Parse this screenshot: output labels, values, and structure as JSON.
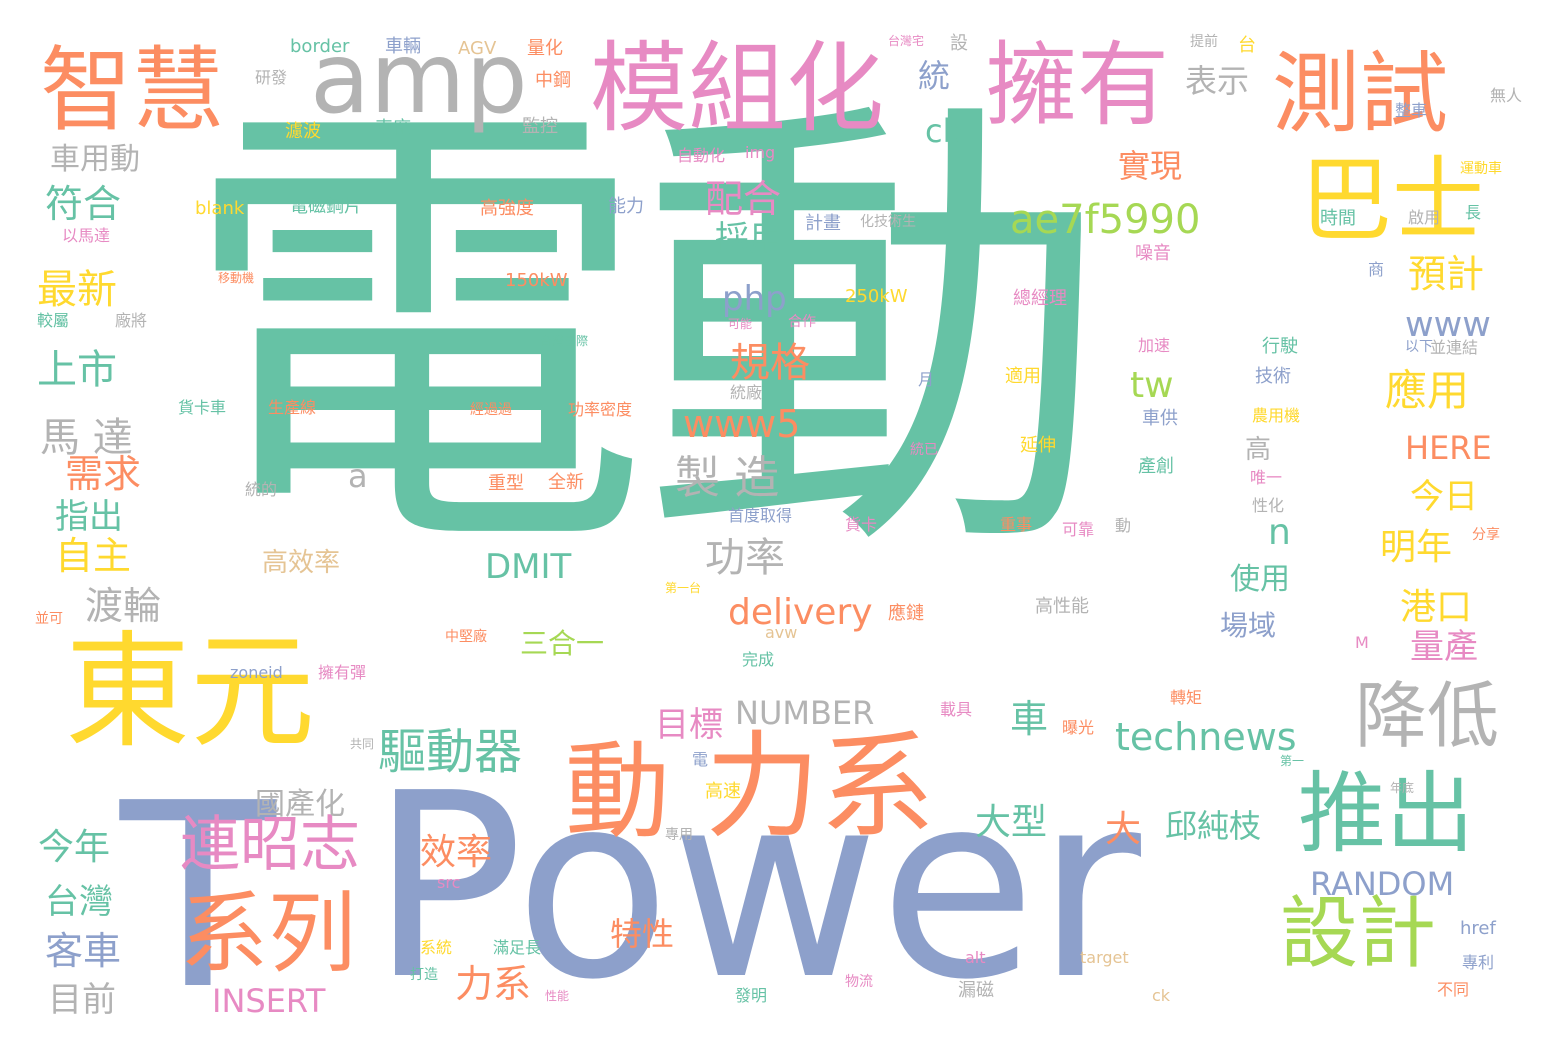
{
  "palette": {
    "teal": "#66c2a5",
    "orange": "#fc8d62",
    "blue": "#8da0cb",
    "pink": "#e78ac3",
    "green": "#a6d854",
    "yellow": "#ffd92f",
    "tan": "#e5c494",
    "gray": "#b3b3b3"
  },
  "words": [
    {
      "text": "電動",
      "size": 470,
      "color": "teal"
    },
    {
      "text": "Power",
      "size": 250,
      "color": "blue"
    },
    {
      "text": "T",
      "size": 250,
      "color": "blue"
    },
    {
      "text": "東元",
      "size": 120,
      "color": "yellow"
    },
    {
      "text": "力系",
      "size": 110,
      "color": "orange"
    },
    {
      "text": "動",
      "size": 100,
      "color": "orange"
    },
    {
      "text": "模組化",
      "size": 95,
      "color": "pink"
    },
    {
      "text": "擁有",
      "size": 90,
      "color": "pink"
    },
    {
      "text": "智慧",
      "size": 90,
      "color": "orange"
    },
    {
      "text": "amp",
      "size": 95,
      "color": "gray"
    },
    {
      "text": "測試",
      "size": 85,
      "color": "orange"
    },
    {
      "text": "巴士",
      "size": 85,
      "color": "yellow"
    },
    {
      "text": "推出",
      "size": 85,
      "color": "teal"
    },
    {
      "text": "系列",
      "size": 85,
      "color": "orange"
    },
    {
      "text": "設計",
      "size": 75,
      "color": "green"
    },
    {
      "text": "降低",
      "size": 70,
      "color": "gray"
    },
    {
      "text": "連昭志",
      "size": 60,
      "color": "pink"
    },
    {
      "text": "驅動器",
      "size": 48,
      "color": "teal"
    },
    {
      "text": "ae7f5990",
      "size": 40,
      "color": "green"
    },
    {
      "text": "technews",
      "size": 38,
      "color": "teal"
    },
    {
      "text": "製 造",
      "size": 45,
      "color": "gray"
    },
    {
      "text": "馬 達",
      "size": 40,
      "color": "gray"
    },
    {
      "text": "規格",
      "size": 40,
      "color": "orange"
    },
    {
      "text": "應用",
      "size": 40,
      "color": "yellow"
    },
    {
      "text": "www5",
      "size": 38,
      "color": "orange"
    },
    {
      "text": "www",
      "size": 35,
      "color": "blue"
    },
    {
      "text": "功率",
      "size": 40,
      "color": "gray"
    },
    {
      "text": "delivery",
      "size": 36,
      "color": "orange"
    },
    {
      "text": "RANDOM",
      "size": 32,
      "color": "blue"
    },
    {
      "text": "INSERT",
      "size": 32,
      "color": "pink"
    },
    {
      "text": "NUMBER",
      "size": 32,
      "color": "gray"
    },
    {
      "text": "DMIT",
      "size": 34,
      "color": "teal"
    },
    {
      "text": "HERE",
      "size": 32,
      "color": "orange"
    },
    {
      "text": "php",
      "size": 34,
      "color": "blue"
    },
    {
      "text": "tw",
      "size": 36,
      "color": "green"
    },
    {
      "text": "cb",
      "size": 32,
      "color": "teal"
    },
    {
      "text": "a",
      "size": 32,
      "color": "gray"
    },
    {
      "text": "n",
      "size": 36,
      "color": "teal"
    },
    {
      "text": "實現",
      "size": 32,
      "color": "orange"
    },
    {
      "text": "表示",
      "size": 32,
      "color": "gray"
    },
    {
      "text": "配合",
      "size": 38,
      "color": "pink"
    },
    {
      "text": "採用",
      "size": 34,
      "color": "teal"
    },
    {
      "text": "預計",
      "size": 38,
      "color": "yellow"
    },
    {
      "text": "統",
      "size": 32,
      "color": "blue"
    },
    {
      "text": "車用動",
      "size": 30,
      "color": "gray"
    },
    {
      "text": "符合",
      "size": 38,
      "color": "teal"
    },
    {
      "text": "最新",
      "size": 40,
      "color": "yellow"
    },
    {
      "text": "上市",
      "size": 40,
      "color": "teal"
    },
    {
      "text": "需求",
      "size": 38,
      "color": "orange"
    },
    {
      "text": "指出",
      "size": 34,
      "color": "teal"
    },
    {
      "text": "自主",
      "size": 38,
      "color": "yellow"
    },
    {
      "text": "渡輪",
      "size": 38,
      "color": "gray"
    },
    {
      "text": "今年",
      "size": 36,
      "color": "teal"
    },
    {
      "text": "台灣",
      "size": 34,
      "color": "teal"
    },
    {
      "text": "客車",
      "size": 38,
      "color": "blue"
    },
    {
      "text": "目前",
      "size": 34,
      "color": "gray"
    },
    {
      "text": "國產化",
      "size": 30,
      "color": "gray"
    },
    {
      "text": "大型",
      "size": 36,
      "color": "teal"
    },
    {
      "text": "大",
      "size": 36,
      "color": "orange"
    },
    {
      "text": "邱純枝",
      "size": 32,
      "color": "teal"
    },
    {
      "text": "效率",
      "size": 36,
      "color": "orange"
    },
    {
      "text": "力系",
      "size": 38,
      "color": "orange"
    },
    {
      "text": "特性",
      "size": 32,
      "color": "orange"
    },
    {
      "text": "目標",
      "size": 34,
      "color": "pink"
    },
    {
      "text": "車",
      "size": 38,
      "color": "teal"
    },
    {
      "text": "今日",
      "size": 34,
      "color": "yellow"
    },
    {
      "text": "明年",
      "size": 36,
      "color": "yellow"
    },
    {
      "text": "港口",
      "size": 36,
      "color": "yellow"
    },
    {
      "text": "量產",
      "size": 34,
      "color": "pink"
    },
    {
      "text": "使用",
      "size": 30,
      "color": "teal"
    },
    {
      "text": "場域",
      "size": 28,
      "color": "blue"
    },
    {
      "text": "三合一",
      "size": 28,
      "color": "green"
    },
    {
      "text": "高效率",
      "size": 26,
      "color": "tan"
    },
    {
      "text": "高",
      "size": 26,
      "color": "gray"
    },
    {
      "text": "border",
      "size": 18,
      "color": "teal"
    },
    {
      "text": "車輛",
      "size": 18,
      "color": "blue"
    },
    {
      "text": "AGV",
      "size": 18,
      "color": "tan"
    },
    {
      "text": "量化",
      "size": 18,
      "color": "orange"
    },
    {
      "text": "研發",
      "size": 16,
      "color": "gray"
    },
    {
      "text": "中鋼",
      "size": 18,
      "color": "orange"
    },
    {
      "text": "濾波",
      "size": 18,
      "color": "yellow"
    },
    {
      "text": "車廠",
      "size": 18,
      "color": "teal"
    },
    {
      "text": "監控",
      "size": 18,
      "color": "gray"
    },
    {
      "text": "自動化",
      "size": 16,
      "color": "pink"
    },
    {
      "text": "img",
      "size": 16,
      "color": "pink"
    },
    {
      "text": "blank",
      "size": 18,
      "color": "yellow"
    },
    {
      "text": "電磁鋼片",
      "size": 18,
      "color": "teal"
    },
    {
      "text": "高強度",
      "size": 18,
      "color": "orange"
    },
    {
      "text": "能力",
      "size": 18,
      "color": "blue"
    },
    {
      "text": "計畫",
      "size": 18,
      "color": "blue"
    },
    {
      "text": "以馬達",
      "size": 16,
      "color": "pink"
    },
    {
      "text": "150kW",
      "size": 18,
      "color": "orange"
    },
    {
      "text": "250kW",
      "size": 18,
      "color": "yellow"
    },
    {
      "text": "總經理",
      "size": 18,
      "color": "pink"
    },
    {
      "text": "移動機",
      "size": 12,
      "color": "orange"
    },
    {
      "text": "較屬",
      "size": 16,
      "color": "teal"
    },
    {
      "text": "廠將",
      "size": 16,
      "color": "gray"
    },
    {
      "text": "台灣國際",
      "size": 12,
      "color": "teal"
    },
    {
      "text": "可能",
      "size": 12,
      "color": "pink"
    },
    {
      "text": "合作",
      "size": 14,
      "color": "pink"
    },
    {
      "text": "加速",
      "size": 16,
      "color": "pink"
    },
    {
      "text": "行駛",
      "size": 18,
      "color": "teal"
    },
    {
      "text": "技術",
      "size": 18,
      "color": "blue"
    },
    {
      "text": "月",
      "size": 16,
      "color": "blue"
    },
    {
      "text": "適用",
      "size": 18,
      "color": "yellow"
    },
    {
      "text": "統廠",
      "size": 16,
      "color": "gray"
    },
    {
      "text": "以下",
      "size": 14,
      "color": "blue"
    },
    {
      "text": "並連結",
      "size": 16,
      "color": "gray"
    },
    {
      "text": "貨卡車",
      "size": 16,
      "color": "teal"
    },
    {
      "text": "生產線",
      "size": 16,
      "color": "orange"
    },
    {
      "text": "經過過",
      "size": 14,
      "color": "orange"
    },
    {
      "text": "功率密度",
      "size": 16,
      "color": "orange"
    },
    {
      "text": "車供",
      "size": 18,
      "color": "blue"
    },
    {
      "text": "農用機",
      "size": 16,
      "color": "yellow"
    },
    {
      "text": "延伸",
      "size": 18,
      "color": "yellow"
    },
    {
      "text": "統已",
      "size": 14,
      "color": "pink"
    },
    {
      "text": "產創",
      "size": 18,
      "color": "teal"
    },
    {
      "text": "唯一",
      "size": 16,
      "color": "pink"
    },
    {
      "text": "性化",
      "size": 16,
      "color": "gray"
    },
    {
      "text": "統的",
      "size": 16,
      "color": "gray"
    },
    {
      "text": "重型",
      "size": 18,
      "color": "orange"
    },
    {
      "text": "全新",
      "size": 18,
      "color": "orange"
    },
    {
      "text": "首度取得",
      "size": 16,
      "color": "blue"
    },
    {
      "text": "貨卡",
      "size": 16,
      "color": "pink"
    },
    {
      "text": "重事",
      "size": 16,
      "color": "orange"
    },
    {
      "text": "可靠",
      "size": 16,
      "color": "pink"
    },
    {
      "text": "動",
      "size": 16,
      "color": "gray"
    },
    {
      "text": "高性能",
      "size": 18,
      "color": "gray"
    },
    {
      "text": "應鏈",
      "size": 18,
      "color": "orange"
    },
    {
      "text": "中堅廠",
      "size": 14,
      "color": "orange"
    },
    {
      "text": "完成",
      "size": 16,
      "color": "teal"
    },
    {
      "text": "zoneid",
      "size": 16,
      "color": "blue"
    },
    {
      "text": "擁有彈",
      "size": 16,
      "color": "pink"
    },
    {
      "text": "載具",
      "size": 16,
      "color": "pink"
    },
    {
      "text": "轉矩",
      "size": 16,
      "color": "orange"
    },
    {
      "text": "曝光",
      "size": 16,
      "color": "orange"
    },
    {
      "text": "電",
      "size": 16,
      "color": "blue"
    },
    {
      "text": "高速",
      "size": 18,
      "color": "yellow"
    },
    {
      "text": "專用",
      "size": 14,
      "color": "gray"
    },
    {
      "text": "src",
      "size": 16,
      "color": "pink"
    },
    {
      "text": "系統",
      "size": 16,
      "color": "yellow"
    },
    {
      "text": "滿足長",
      "size": 16,
      "color": "teal"
    },
    {
      "text": "打造",
      "size": 14,
      "color": "teal"
    },
    {
      "text": "性能",
      "size": 12,
      "color": "pink"
    },
    {
      "text": "發明",
      "size": 16,
      "color": "teal"
    },
    {
      "text": "物流",
      "size": 14,
      "color": "pink"
    },
    {
      "text": "漏磁",
      "size": 18,
      "color": "gray"
    },
    {
      "text": "alt",
      "size": 16,
      "color": "pink"
    },
    {
      "text": "target",
      "size": 16,
      "color": "tan"
    },
    {
      "text": "ck",
      "size": 16,
      "color": "tan"
    },
    {
      "text": "不同",
      "size": 16,
      "color": "orange"
    },
    {
      "text": "專利",
      "size": 16,
      "color": "blue"
    },
    {
      "text": "href",
      "size": 18,
      "color": "blue"
    },
    {
      "text": "年底",
      "size": 12,
      "color": "gray"
    },
    {
      "text": "分享",
      "size": 14,
      "color": "orange"
    },
    {
      "text": "並可",
      "size": 14,
      "color": "orange"
    },
    {
      "text": "時間",
      "size": 18,
      "color": "teal"
    },
    {
      "text": "啟用",
      "size": 16,
      "color": "gray"
    },
    {
      "text": "長",
      "size": 16,
      "color": "teal"
    },
    {
      "text": "噪音",
      "size": 18,
      "color": "pink"
    },
    {
      "text": "無人",
      "size": 16,
      "color": "gray"
    },
    {
      "text": "整車",
      "size": 16,
      "color": "blue"
    },
    {
      "text": "提前",
      "size": 14,
      "color": "gray"
    },
    {
      "text": "台灣宅",
      "size": 12,
      "color": "pink"
    },
    {
      "text": "設",
      "size": 18,
      "color": "gray"
    },
    {
      "text": "台",
      "size": 18,
      "color": "yellow"
    },
    {
      "text": "化技術生",
      "size": 14,
      "color": "gray"
    },
    {
      "text": "運動車",
      "size": 14,
      "color": "yellow"
    },
    {
      "text": "商",
      "size": 16,
      "color": "blue"
    },
    {
      "text": "第一台",
      "size": 12,
      "color": "yellow"
    },
    {
      "text": "avw",
      "size": 16,
      "color": "tan"
    },
    {
      "text": "共同",
      "size": 12,
      "color": "gray"
    },
    {
      "text": "M",
      "size": 16,
      "color": "pink"
    },
    {
      "text": "第一",
      "size": 12,
      "color": "teal"
    }
  ]
}
